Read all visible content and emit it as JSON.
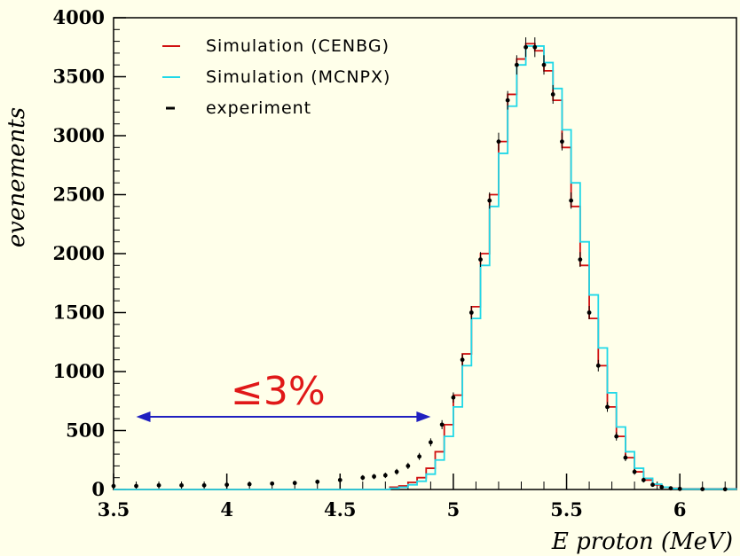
{
  "colors": {
    "background": "#ffffea",
    "cenbg": "#d01010",
    "mcnpx": "#20d8e8",
    "experiment": "#000000",
    "arrow": "#2020c0",
    "annotation": "#e01818"
  },
  "annotation": {
    "text": "≤3%",
    "arrow_from": 3.6,
    "arrow_to": 4.9
  },
  "chart_data": {
    "type": "line",
    "title": "",
    "xlabel": "E proton (MeV)",
    "ylabel": "evenements",
    "xlim": [
      3.5,
      6.25
    ],
    "ylim": [
      0,
      4000
    ],
    "x_ticks": [
      {
        "value": 3.5,
        "label": "3.5"
      },
      {
        "value": 4,
        "label": "4"
      },
      {
        "value": 4.5,
        "label": "4.5"
      },
      {
        "value": 5,
        "label": "5"
      },
      {
        "value": 5.5,
        "label": "5.5"
      },
      {
        "value": 6,
        "label": "6"
      }
    ],
    "y_ticks": [
      {
        "value": 0,
        "label": "0"
      },
      {
        "value": 500,
        "label": "500"
      },
      {
        "value": 1000,
        "label": "1000"
      },
      {
        "value": 1500,
        "label": "1500"
      },
      {
        "value": 2000,
        "label": "2000"
      },
      {
        "value": 2500,
        "label": "2500"
      },
      {
        "value": 3000,
        "label": "3000"
      },
      {
        "value": 3500,
        "label": "3500"
      },
      {
        "value": 4000,
        "label": "4000"
      }
    ],
    "legend": {
      "placement": "top-left"
    },
    "series": [
      {
        "name": "Simulation (CENBG)",
        "style": "step",
        "color": "#d01010",
        "x": [
          3.5,
          4.5,
          4.72,
          4.76,
          4.8,
          4.84,
          4.88,
          4.92,
          4.96,
          5.0,
          5.04,
          5.08,
          5.12,
          5.16,
          5.2,
          5.24,
          5.28,
          5.32,
          5.36,
          5.4,
          5.44,
          5.48,
          5.52,
          5.56,
          5.6,
          5.64,
          5.68,
          5.72,
          5.76,
          5.8,
          5.84,
          5.88,
          5.92,
          5.96,
          6.0,
          6.25
        ],
        "y": [
          0,
          0,
          20,
          30,
          60,
          100,
          180,
          320,
          550,
          800,
          1150,
          1550,
          2000,
          2500,
          2950,
          3350,
          3650,
          3780,
          3720,
          3550,
          3300,
          2900,
          2400,
          1900,
          1450,
          1050,
          700,
          450,
          270,
          150,
          80,
          40,
          20,
          10,
          5,
          0
        ]
      },
      {
        "name": "Simulation (MCNPX)",
        "style": "step",
        "color": "#20d8e8",
        "x": [
          3.5,
          4.5,
          4.72,
          4.76,
          4.8,
          4.84,
          4.88,
          4.92,
          4.96,
          5.0,
          5.04,
          5.08,
          5.12,
          5.16,
          5.2,
          5.24,
          5.28,
          5.32,
          5.36,
          5.4,
          5.44,
          5.48,
          5.52,
          5.56,
          5.6,
          5.64,
          5.68,
          5.72,
          5.76,
          5.8,
          5.84,
          5.88,
          5.92,
          5.96,
          6.0,
          6.25
        ],
        "y": [
          0,
          0,
          10,
          20,
          40,
          70,
          130,
          250,
          450,
          700,
          1050,
          1450,
          1900,
          2400,
          2850,
          3250,
          3600,
          3760,
          3760,
          3620,
          3400,
          3050,
          2600,
          2100,
          1650,
          1200,
          820,
          530,
          320,
          180,
          95,
          45,
          20,
          8,
          4,
          0
        ]
      },
      {
        "name": "experiment",
        "style": "points",
        "color": "#000000",
        "x": [
          3.5,
          3.6,
          3.7,
          3.8,
          3.9,
          4.0,
          4.1,
          4.2,
          4.3,
          4.4,
          4.5,
          4.6,
          4.65,
          4.7,
          4.75,
          4.8,
          4.85,
          4.9,
          4.95,
          5.0,
          5.04,
          5.08,
          5.12,
          5.16,
          5.2,
          5.24,
          5.28,
          5.32,
          5.36,
          5.4,
          5.44,
          5.48,
          5.52,
          5.56,
          5.6,
          5.64,
          5.68,
          5.72,
          5.76,
          5.8,
          5.84,
          5.88,
          5.92,
          5.96,
          6.0,
          6.1,
          6.2
        ],
        "y": [
          30,
          30,
          35,
          35,
          35,
          40,
          45,
          50,
          55,
          65,
          80,
          100,
          110,
          120,
          150,
          200,
          280,
          400,
          550,
          780,
          1100,
          1500,
          1950,
          2450,
          2950,
          3300,
          3600,
          3750,
          3750,
          3600,
          3350,
          2950,
          2450,
          1950,
          1500,
          1050,
          700,
          450,
          270,
          150,
          80,
          40,
          20,
          10,
          5,
          3,
          2
        ]
      }
    ]
  }
}
